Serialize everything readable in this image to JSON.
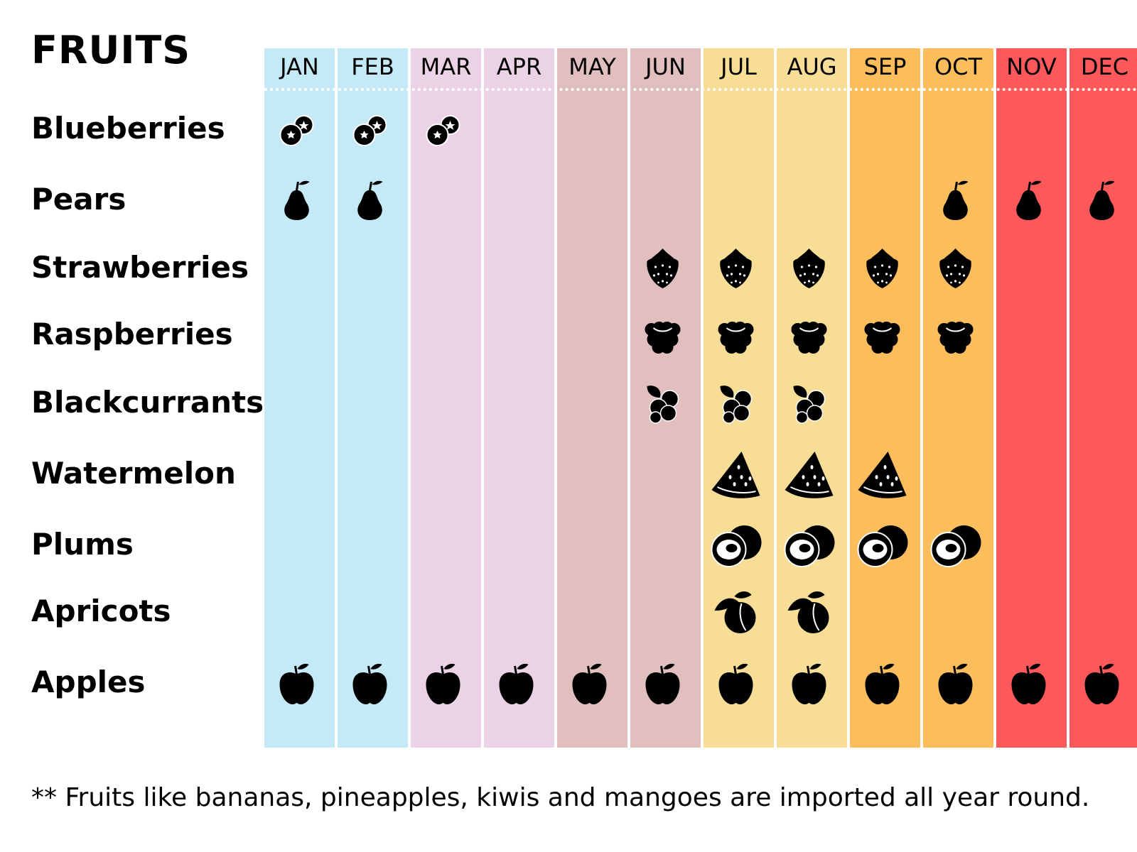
{
  "chart_data": {
    "type": "table",
    "title": "FRUITS",
    "months": [
      "JAN",
      "FEB",
      "MAR",
      "APR",
      "MAY",
      "JUN",
      "JUL",
      "AUG",
      "SEP",
      "OCT",
      "NOV",
      "DEC"
    ],
    "month_colors": [
      "#c3eaf6",
      "#c3eaf6",
      "#ecd2e6",
      "#ecd2e6",
      "#e1bfbf",
      "#e1bfbf",
      "#f7dd95",
      "#f7dd95",
      "#fcbe5c",
      "#fcbe5c",
      "#fd585a",
      "#fd585a"
    ],
    "fruits": [
      {
        "name": "Blueberries",
        "icon": "blueberries-icon",
        "months": [
          "JAN",
          "FEB",
          "MAR"
        ]
      },
      {
        "name": "Pears",
        "icon": "pear-icon",
        "months": [
          "JAN",
          "FEB",
          "OCT",
          "NOV",
          "DEC"
        ]
      },
      {
        "name": "Strawberries",
        "icon": "strawberry-icon",
        "months": [
          "JUN",
          "JUL",
          "AUG",
          "SEP",
          "OCT"
        ]
      },
      {
        "name": "Raspberries",
        "icon": "raspberry-icon",
        "months": [
          "JUN",
          "JUL",
          "AUG",
          "SEP",
          "OCT"
        ]
      },
      {
        "name": "Blackcurrants",
        "icon": "blackcurrant-icon",
        "months": [
          "JUN",
          "JUL",
          "AUG"
        ]
      },
      {
        "name": "Watermelon",
        "icon": "watermelon-icon",
        "months": [
          "JUL",
          "AUG",
          "SEP"
        ]
      },
      {
        "name": "Plums",
        "icon": "plum-icon",
        "months": [
          "JUL",
          "AUG",
          "SEP",
          "OCT"
        ]
      },
      {
        "name": "Apricots",
        "icon": "apricot-icon",
        "months": [
          "JUL",
          "AUG"
        ]
      },
      {
        "name": "Apples",
        "icon": "apple-icon",
        "months": [
          "JAN",
          "FEB",
          "MAR",
          "APR",
          "MAY",
          "JUN",
          "JUL",
          "AUG",
          "SEP",
          "OCT",
          "NOV",
          "DEC"
        ]
      }
    ],
    "footnote": "** Fruits like bananas, pineapples, kiwis and mangoes are imported all year round."
  }
}
